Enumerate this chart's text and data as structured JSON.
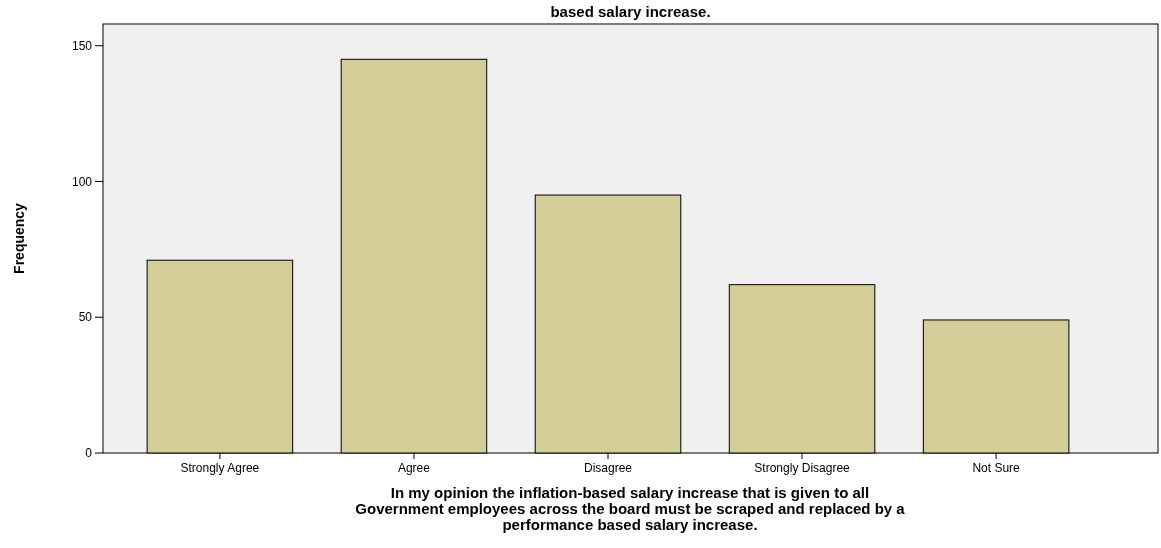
{
  "chart_data": {
    "type": "bar",
    "title": "based salary increase.",
    "xlabel": "In my opinion the inflation-based salary increase that is given to all\nGovernment employees across the board must be scraped and replaced by a\nperformance based salary increase.",
    "ylabel": "Frequency",
    "categories": [
      "Strongly Agree",
      "Agree",
      "Disagree",
      "Strongly Disagree",
      "Not Sure"
    ],
    "values": [
      71,
      145,
      95,
      62,
      49
    ],
    "color": "#d3cd97",
    "ylim": [
      0,
      158
    ],
    "yticks": [
      0,
      50,
      100,
      150
    ],
    "grid": false
  }
}
